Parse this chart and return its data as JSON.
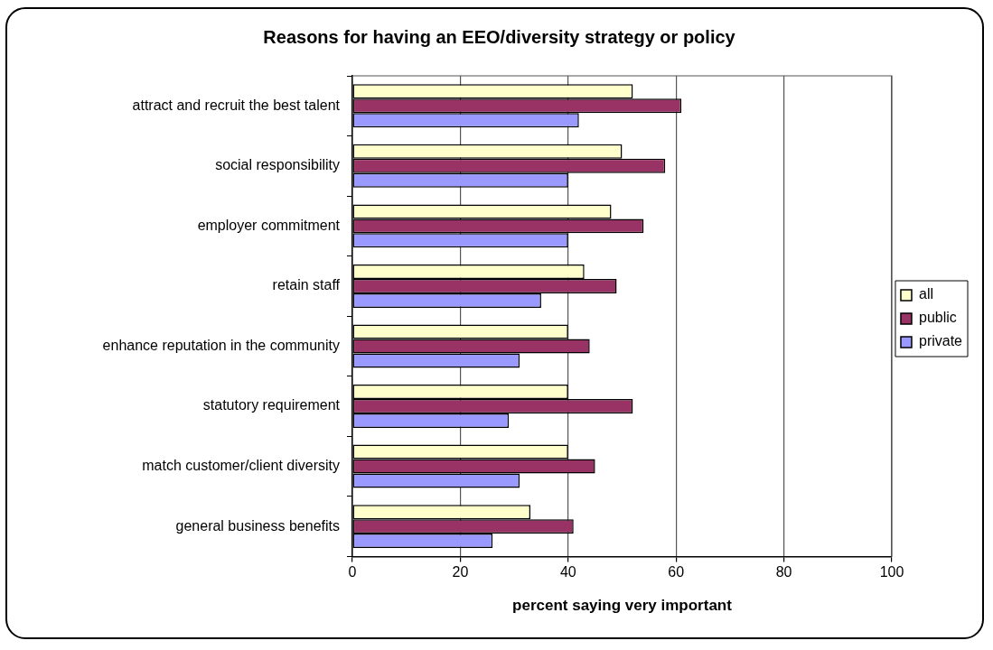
{
  "chart_data": {
    "type": "bar",
    "orientation": "horizontal",
    "title": "Reasons for having an EEO/diversity strategy or policy",
    "xlabel": "percent saying very important",
    "categories": [
      "attract and recruit the best talent",
      "social responsibility",
      "employer commitment",
      "retain staff",
      "enhance reputation in the community",
      "statutory requirement",
      "match customer/client diversity",
      "general business benefits"
    ],
    "series": [
      {
        "name": "all",
        "color": "#ffffcc",
        "values": [
          52,
          50,
          48,
          43,
          40,
          40,
          40,
          33
        ]
      },
      {
        "name": "public",
        "color": "#993366",
        "values": [
          61,
          58,
          54,
          49,
          44,
          52,
          45,
          41
        ]
      },
      {
        "name": "private",
        "color": "#9999ff",
        "values": [
          42,
          40,
          40,
          35,
          31,
          29,
          31,
          26
        ]
      }
    ],
    "xlim": [
      0,
      100
    ],
    "xticks": [
      0,
      20,
      40,
      60,
      80,
      100
    ],
    "grid": "x",
    "legend": "right"
  }
}
